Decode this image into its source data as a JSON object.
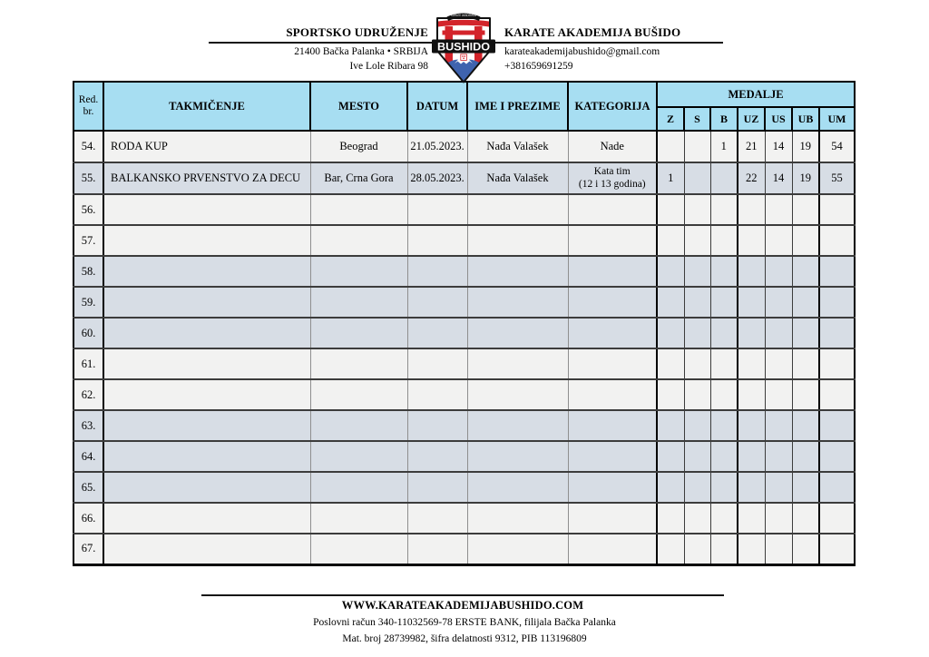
{
  "header": {
    "org_type": "SPORTSKO UDRUŽENJE",
    "org_name": "KARATE AKADEMIJA BUŠIDO",
    "address_line1": "21400 Bačka Palanka • SRBIJA",
    "address_line2": "Ive Lole Ribara 98",
    "email": "karateakademijabushido@gmail.com",
    "phone": "+381659691259",
    "logo": {
      "banner_text": "KARATE AKADEMIJA",
      "main_text": "BUSHIDO"
    }
  },
  "table": {
    "header": {
      "red_br_line1": "Red.",
      "red_br_line2": "br.",
      "takmicenje": "TAKMIČENJE",
      "mesto": "MESTO",
      "datum": "DATUM",
      "ime_i_prezime": "IME I PREZIME",
      "kategorija": "KATEGORIJA",
      "medalje": "MEDALJE",
      "medal_cols": [
        "Z",
        "S",
        "B",
        "UZ",
        "US",
        "UB",
        "UM"
      ]
    },
    "rows": [
      {
        "num": "54.",
        "takmicenje": "RODA KUP",
        "mesto": "Beograd",
        "datum": "21.05.2023.",
        "ime": "Nađa Valašek",
        "kategorija": "Nade",
        "kategorija2": "",
        "z": "",
        "s": "",
        "b": "1",
        "uz": "21",
        "us": "14",
        "ub": "19",
        "um": "54",
        "shade": "light"
      },
      {
        "num": "55.",
        "takmicenje": "BALKANSKO PRVENSTVO ZA DECU",
        "mesto": "Bar, Crna Gora",
        "datum": "28.05.2023.",
        "ime": "Nađa Valašek",
        "kategorija": "Kata tim",
        "kategorija2": "(12 i 13 godina)",
        "z": "1",
        "s": "",
        "b": "",
        "uz": "22",
        "us": "14",
        "ub": "19",
        "um": "55",
        "shade": "dark"
      },
      {
        "num": "56.",
        "takmicenje": "",
        "mesto": "",
        "datum": "",
        "ime": "",
        "kategorija": "",
        "kategorija2": "",
        "z": "",
        "s": "",
        "b": "",
        "uz": "",
        "us": "",
        "ub": "",
        "um": "",
        "shade": "light"
      },
      {
        "num": "57.",
        "takmicenje": "",
        "mesto": "",
        "datum": "",
        "ime": "",
        "kategorija": "",
        "kategorija2": "",
        "z": "",
        "s": "",
        "b": "",
        "uz": "",
        "us": "",
        "ub": "",
        "um": "",
        "shade": "light"
      },
      {
        "num": "58.",
        "takmicenje": "",
        "mesto": "",
        "datum": "",
        "ime": "",
        "kategorija": "",
        "kategorija2": "",
        "z": "",
        "s": "",
        "b": "",
        "uz": "",
        "us": "",
        "ub": "",
        "um": "",
        "shade": "dark"
      },
      {
        "num": "59.",
        "takmicenje": "",
        "mesto": "",
        "datum": "",
        "ime": "",
        "kategorija": "",
        "kategorija2": "",
        "z": "",
        "s": "",
        "b": "",
        "uz": "",
        "us": "",
        "ub": "",
        "um": "",
        "shade": "dark"
      },
      {
        "num": "60.",
        "takmicenje": "",
        "mesto": "",
        "datum": "",
        "ime": "",
        "kategorija": "",
        "kategorija2": "",
        "z": "",
        "s": "",
        "b": "",
        "uz": "",
        "us": "",
        "ub": "",
        "um": "",
        "shade": "dark"
      },
      {
        "num": "61.",
        "takmicenje": "",
        "mesto": "",
        "datum": "",
        "ime": "",
        "kategorija": "",
        "kategorija2": "",
        "z": "",
        "s": "",
        "b": "",
        "uz": "",
        "us": "",
        "ub": "",
        "um": "",
        "shade": "light"
      },
      {
        "num": "62.",
        "takmicenje": "",
        "mesto": "",
        "datum": "",
        "ime": "",
        "kategorija": "",
        "kategorija2": "",
        "z": "",
        "s": "",
        "b": "",
        "uz": "",
        "us": "",
        "ub": "",
        "um": "",
        "shade": "light"
      },
      {
        "num": "63.",
        "takmicenje": "",
        "mesto": "",
        "datum": "",
        "ime": "",
        "kategorija": "",
        "kategorija2": "",
        "z": "",
        "s": "",
        "b": "",
        "uz": "",
        "us": "",
        "ub": "",
        "um": "",
        "shade": "dark"
      },
      {
        "num": "64.",
        "takmicenje": "",
        "mesto": "",
        "datum": "",
        "ime": "",
        "kategorija": "",
        "kategorija2": "",
        "z": "",
        "s": "",
        "b": "",
        "uz": "",
        "us": "",
        "ub": "",
        "um": "",
        "shade": "dark"
      },
      {
        "num": "65.",
        "takmicenje": "",
        "mesto": "",
        "datum": "",
        "ime": "",
        "kategorija": "",
        "kategorija2": "",
        "z": "",
        "s": "",
        "b": "",
        "uz": "",
        "us": "",
        "ub": "",
        "um": "",
        "shade": "dark"
      },
      {
        "num": "66.",
        "takmicenje": "",
        "mesto": "",
        "datum": "",
        "ime": "",
        "kategorija": "",
        "kategorija2": "",
        "z": "",
        "s": "",
        "b": "",
        "uz": "",
        "us": "",
        "ub": "",
        "um": "",
        "shade": "light"
      },
      {
        "num": "67.",
        "takmicenje": "",
        "mesto": "",
        "datum": "",
        "ime": "",
        "kategorija": "",
        "kategorija2": "",
        "z": "",
        "s": "",
        "b": "",
        "uz": "",
        "us": "",
        "ub": "",
        "um": "",
        "shade": "light"
      }
    ]
  },
  "footer": {
    "website": "WWW.KARATEAKADEMIJABUSHIDO.COM",
    "line1": "Poslovni račun 340-11032569-78 ERSTE BANK, filijala Bačka Palanka",
    "line2": "Mat. broj 28739982, šifra delatnosti 9312, PIB 113196809"
  },
  "colors": {
    "table_header_fill": "#a7def2",
    "row_light": "#f2f2f1",
    "row_dark": "#d7dde5",
    "logo_red": "#d3242b",
    "logo_blue": "#3f63ae",
    "border_black": "#000000"
  }
}
